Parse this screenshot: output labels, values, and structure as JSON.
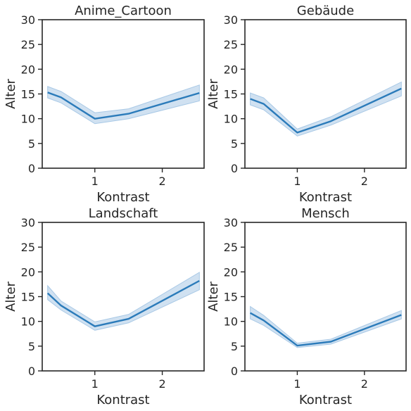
{
  "chart_data": [
    {
      "type": "line",
      "title": "Anime_Cartoon",
      "xlabel": "Kontrast",
      "ylabel": "Alter",
      "xlim": [
        0.22,
        2.62
      ],
      "ylim": [
        0,
        30
      ],
      "xticks": [
        1,
        2
      ],
      "yticks": [
        0,
        5,
        10,
        15,
        20,
        25,
        30
      ],
      "grid": false,
      "color": "#2b7bba",
      "band_color": "#a9c9e6",
      "x": [
        0.3,
        0.5,
        1.0,
        1.5,
        2.55
      ],
      "series": [
        {
          "values": [
            15.3,
            14.3,
            10.0,
            11.0,
            15.2
          ],
          "lower": [
            14.2,
            13.2,
            9.0,
            10.0,
            13.6
          ],
          "upper": [
            16.5,
            15.5,
            11.2,
            12.0,
            16.8
          ]
        }
      ]
    },
    {
      "type": "line",
      "title": "Gebäude",
      "xlabel": "Kontrast",
      "ylabel": "Alter",
      "xlim": [
        0.22,
        2.62
      ],
      "ylim": [
        0,
        30
      ],
      "xticks": [
        1,
        2
      ],
      "yticks": [
        0,
        5,
        10,
        15,
        20,
        25,
        30
      ],
      "grid": false,
      "color": "#2b7bba",
      "band_color": "#a9c9e6",
      "x": [
        0.3,
        0.5,
        1.0,
        1.5,
        2.55
      ],
      "series": [
        {
          "values": [
            14.0,
            13.0,
            7.2,
            9.5,
            16.1
          ],
          "lower": [
            12.8,
            11.8,
            6.5,
            8.7,
            14.6
          ],
          "upper": [
            15.2,
            14.2,
            7.9,
            10.4,
            17.4
          ]
        }
      ]
    },
    {
      "type": "line",
      "title": "Landschaft",
      "xlabel": "Kontrast",
      "ylabel": "Alter",
      "xlim": [
        0.22,
        2.62
      ],
      "ylim": [
        0,
        30
      ],
      "xticks": [
        1,
        2
      ],
      "yticks": [
        0,
        5,
        10,
        15,
        20,
        25,
        30
      ],
      "grid": false,
      "color": "#2b7bba",
      "band_color": "#a9c9e6",
      "x": [
        0.3,
        0.5,
        1.0,
        1.5,
        2.55
      ],
      "series": [
        {
          "values": [
            15.7,
            13.2,
            9.0,
            10.5,
            18.2
          ],
          "lower": [
            14.4,
            12.3,
            8.2,
            9.7,
            16.4
          ],
          "upper": [
            17.2,
            14.1,
            9.9,
            11.4,
            19.9
          ]
        }
      ]
    },
    {
      "type": "line",
      "title": "Mensch",
      "xlabel": "Kontrast",
      "ylabel": "Alter",
      "xlim": [
        0.22,
        2.62
      ],
      "ylim": [
        0,
        30
      ],
      "xticks": [
        1,
        2
      ],
      "yticks": [
        0,
        5,
        10,
        15,
        20,
        25,
        30
      ],
      "grid": false,
      "color": "#2b7bba",
      "band_color": "#a9c9e6",
      "x": [
        0.3,
        0.5,
        1.0,
        1.5,
        2.55
      ],
      "series": [
        {
          "values": [
            11.7,
            10.2,
            5.1,
            5.9,
            11.3
          ],
          "lower": [
            10.5,
            9.2,
            4.7,
            5.4,
            10.5
          ],
          "upper": [
            13.0,
            11.2,
            5.6,
            6.4,
            12.2
          ]
        }
      ]
    }
  ]
}
